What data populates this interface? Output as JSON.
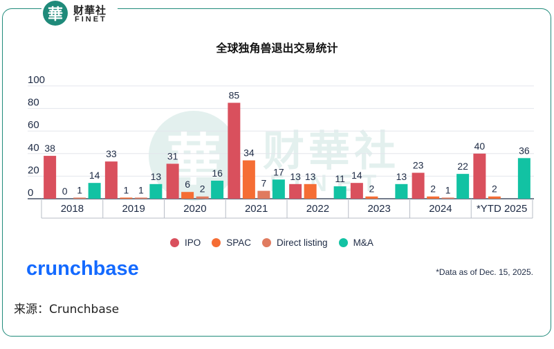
{
  "logo": {
    "mark": "華",
    "cn": "财華社",
    "en": "FINET"
  },
  "watermark": {
    "mark": "華",
    "cn": "财華社",
    "en": "FINET"
  },
  "title": "全球独角兽退出交易统计",
  "legend": [
    {
      "label": "IPO",
      "color": "#d9505d"
    },
    {
      "label": "SPAC",
      "color": "#f56d34"
    },
    {
      "label": "Direct listing",
      "color": "#e07b5f"
    },
    {
      "label": "M&A",
      "color": "#12c2a3"
    }
  ],
  "brand": "crunchbase",
  "footnote": "*Data as of Dec. 15, 2025.",
  "source": "来源：Crunchbase",
  "chart_data": {
    "type": "bar",
    "title": "全球独角兽退出交易统计",
    "categories": [
      "2018",
      "2019",
      "2020",
      "2021",
      "2022",
      "2023",
      "2024",
      "*YTD 2025"
    ],
    "series": [
      {
        "name": "IPO",
        "values": [
          38,
          33,
          31,
          85,
          13,
          14,
          23,
          40
        ],
        "labels": [
          "38",
          "33",
          "31",
          "85",
          "13",
          "14",
          "23",
          "40"
        ]
      },
      {
        "name": "SPAC",
        "values": [
          0,
          1,
          6,
          34,
          13,
          2,
          2,
          2
        ],
        "labels": [
          "0",
          "1",
          "6",
          "34",
          "13",
          "2",
          "2",
          "2"
        ]
      },
      {
        "name": "Direct listing",
        "values": [
          1,
          1,
          2,
          7,
          0,
          0,
          1,
          0
        ],
        "labels": [
          "1",
          "1",
          "2",
          "7",
          "",
          "",
          "1",
          ""
        ]
      },
      {
        "name": "M&A",
        "values": [
          14,
          13,
          16,
          17,
          11,
          13,
          22,
          36
        ],
        "labels": [
          "14",
          "13",
          "16",
          "17",
          "11",
          "13",
          "22",
          "36"
        ]
      }
    ],
    "yticks": [
      0,
      20,
      40,
      60,
      80,
      100
    ],
    "ylim": [
      0,
      100
    ],
    "grid": true,
    "legend_position": "bottom"
  }
}
